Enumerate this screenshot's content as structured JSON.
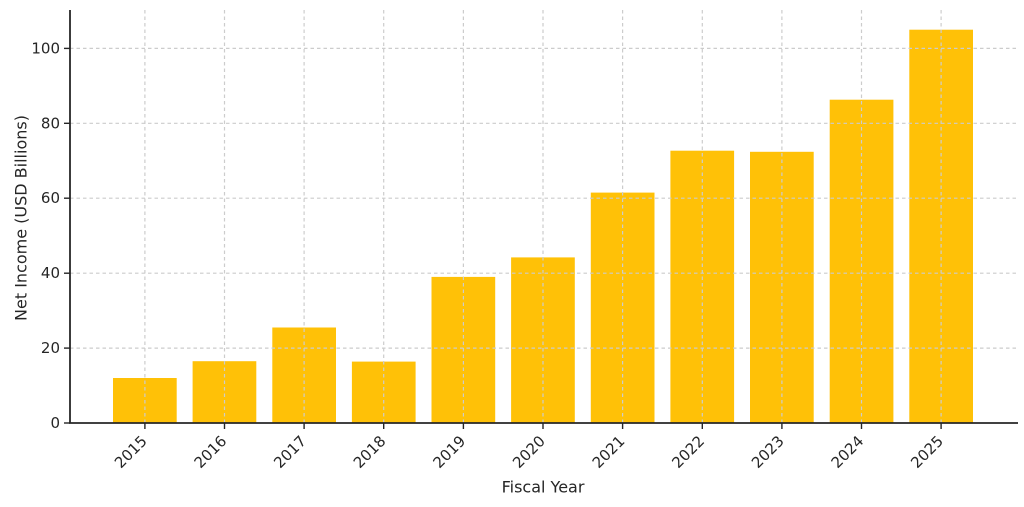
{
  "figure": {
    "background_color": "#ffffff",
    "text_color": "#262626"
  },
  "chart_data": {
    "type": "bar",
    "title": "",
    "xlabel": "Fiscal Year",
    "ylabel": "Net Income (USD Billions)",
    "categories": [
      "2015",
      "2016",
      "2017",
      "2018",
      "2019",
      "2020",
      "2021",
      "2022",
      "2023",
      "2024",
      "2025"
    ],
    "values": [
      12.0,
      16.5,
      25.5,
      16.4,
      39.0,
      44.2,
      61.5,
      72.7,
      72.4,
      86.3,
      105.0
    ],
    "yticks": [
      0,
      20,
      40,
      60,
      80,
      100
    ],
    "ylim": [
      0,
      110.25
    ],
    "bar_color": "#FFC107",
    "spine_color": "#262626",
    "grid": {
      "visible": true,
      "style": "dashed",
      "color": "#cccccc",
      "drawn_over_bars": true,
      "horizontal": true,
      "vertical": true
    },
    "x_tick_rotation_deg": -45,
    "legend": null
  }
}
